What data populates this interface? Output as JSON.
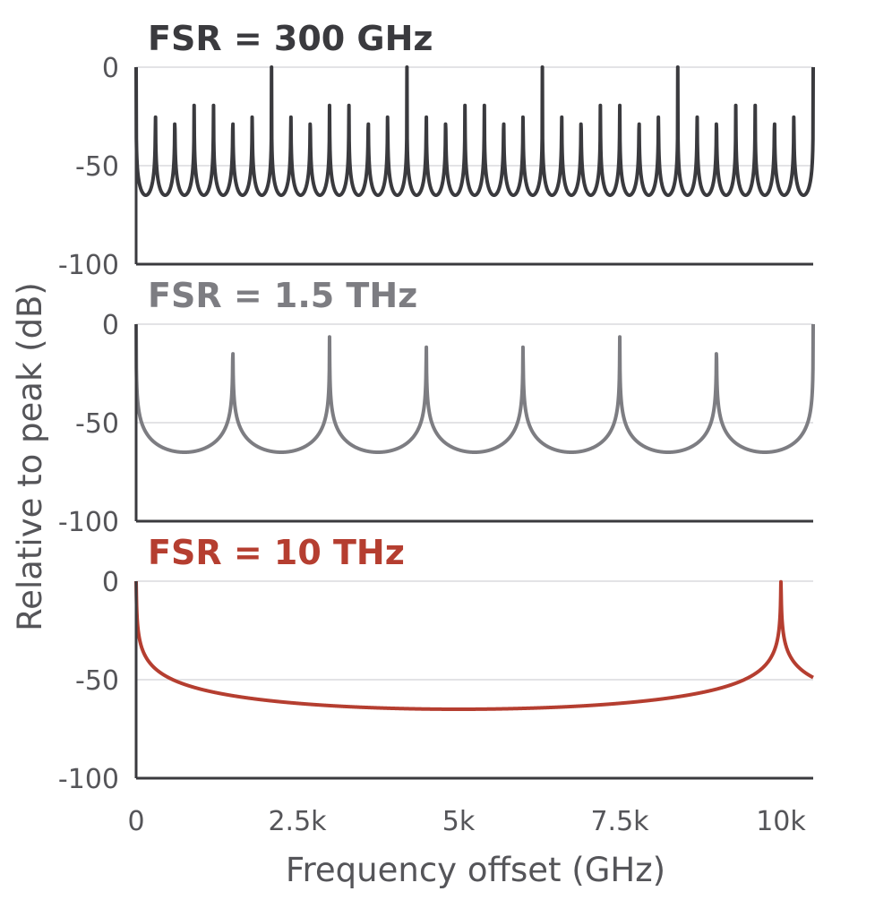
{
  "chart_data": {
    "type": "line",
    "xlabel": "Frequency offset (GHz)",
    "ylabel": "Relative to peak (dB)",
    "xlim": [
      0,
      10500
    ],
    "xticks": [
      0,
      2500,
      5000,
      7500,
      10000
    ],
    "xtick_labels": [
      "0",
      "2.5k",
      "5k",
      "7.5k",
      "10k"
    ],
    "ylim": [
      -100,
      0
    ],
    "yticks": [
      0,
      -50,
      -100
    ],
    "ytick_labels": [
      "0",
      "-50",
      "-100"
    ],
    "grid": true,
    "panels": [
      {
        "title": "FSR = 300 GHz",
        "color": "#3a3a3e",
        "fsr_ghz": 300,
        "floor_db": -65
      },
      {
        "title": "FSR = 1.5 THz",
        "color": "#7d7d82",
        "fsr_ghz": 1500,
        "floor_db": -65
      },
      {
        "title": "FSR = 10 THz",
        "color": "#b53e30",
        "fsr_ghz": 10000,
        "floor_db": -65
      }
    ]
  }
}
